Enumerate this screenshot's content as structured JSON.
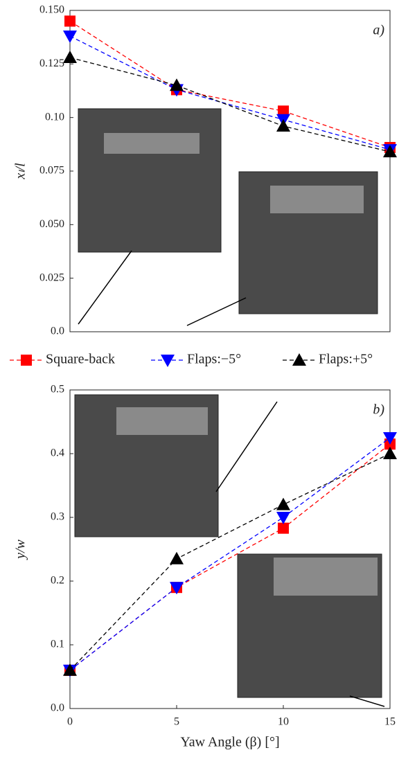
{
  "chart_data": [
    {
      "type": "line",
      "ylabel": "xₗ/l",
      "annotation": "a)",
      "xlim": [
        0,
        15
      ],
      "ylim": [
        0,
        0.15
      ],
      "yticks": [
        {
          "value": 0,
          "label": "0.0"
        },
        0.025,
        {
          "value": 0.05,
          "label": "0.050"
        },
        0.075,
        {
          "value": 0.1,
          "label": "0.10"
        },
        0.125,
        {
          "value": 0.15,
          "label": "0.150"
        }
      ],
      "x": [
        0,
        5,
        10,
        15
      ],
      "series": [
        {
          "name": "Square-back",
          "color": "#ff0000",
          "marker": "square",
          "values": [
            0.145,
            0.113,
            0.103,
            0.086
          ]
        },
        {
          "name": "Flaps:−5°",
          "color": "#0000ff",
          "marker": "triangle-down",
          "values": [
            0.138,
            0.113,
            0.099,
            0.085
          ]
        },
        {
          "name": "Flaps:+5°",
          "color": "#000000",
          "marker": "triangle-up",
          "values": [
            0.128,
            0.115,
            0.096,
            0.084
          ]
        }
      ]
    },
    {
      "type": "line",
      "ylabel": "y/w",
      "xlabel": "Yaw Angle (β) [°]",
      "annotation": "b)",
      "xlim": [
        0,
        15
      ],
      "ylim": [
        0,
        0.5
      ],
      "xticks": [
        0,
        5,
        10,
        15
      ],
      "yticks": [
        {
          "value": 0,
          "label": "0.0"
        },
        0.1,
        0.2,
        0.3,
        0.4,
        0.5
      ],
      "x": [
        0,
        5,
        10,
        15
      ],
      "series": [
        {
          "color": "#ff0000",
          "marker": "square",
          "values": [
            0.06,
            0.19,
            0.283,
            0.415
          ]
        },
        {
          "color": "#0000ff",
          "marker": "triangle-down",
          "values": [
            0.06,
            0.19,
            0.3,
            0.425
          ]
        },
        {
          "color": "#000000",
          "marker": "triangle-up",
          "values": [
            0.06,
            0.235,
            0.32,
            0.4
          ]
        }
      ]
    }
  ]
}
